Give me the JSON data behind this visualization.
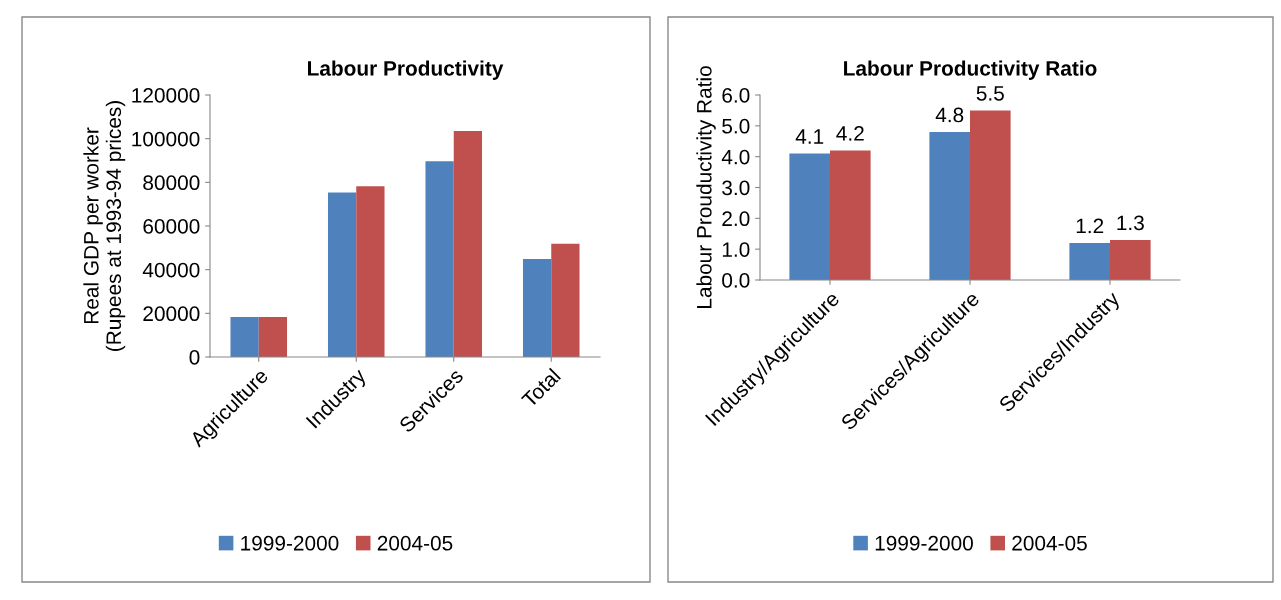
{
  "chart_data": [
    {
      "type": "bar",
      "title": "Labour Productivity",
      "ylabel": "Real GDP per worker\n(Rupees at 1993-94 prices)",
      "categories": [
        "Agriculture",
        "Industry",
        "Services",
        "Total"
      ],
      "series": [
        {
          "name": "1999-2000",
          "color": "#4f81bd",
          "values": [
            18300,
            75300,
            89600,
            44900
          ]
        },
        {
          "name": "2004-05",
          "color": "#c0504d",
          "values": [
            18300,
            78200,
            103500,
            51900
          ]
        }
      ],
      "ylim": [
        0,
        120000
      ],
      "yticks": [
        0,
        20000,
        40000,
        60000,
        80000,
        100000,
        120000
      ],
      "legend": "bottom"
    },
    {
      "type": "bar",
      "title": "Labour Productivity Ratio",
      "ylabel": "Labour Prouductivity Ratio",
      "categories": [
        "Industry/Agriculture",
        "Services/Agriculture",
        "Services/Industry"
      ],
      "series": [
        {
          "name": "1999-2000",
          "color": "#4f81bd",
          "values": [
            4.1,
            4.8,
            1.2
          ]
        },
        {
          "name": "2004-05",
          "color": "#c0504d",
          "values": [
            4.2,
            5.5,
            1.3
          ]
        }
      ],
      "ylim": [
        0,
        6
      ],
      "yticks": [
        {
          "value": 0,
          "label": "0.0"
        },
        {
          "value": 1,
          "label": "1.0"
        },
        {
          "value": 2,
          "label": "2.0"
        },
        {
          "value": 3,
          "label": "3.0"
        },
        {
          "value": 4,
          "label": "4.0"
        },
        {
          "value": 5,
          "label": "5.0"
        },
        {
          "value": 6,
          "label": "6.0"
        }
      ],
      "data_labels": true,
      "legend": "bottom"
    }
  ]
}
